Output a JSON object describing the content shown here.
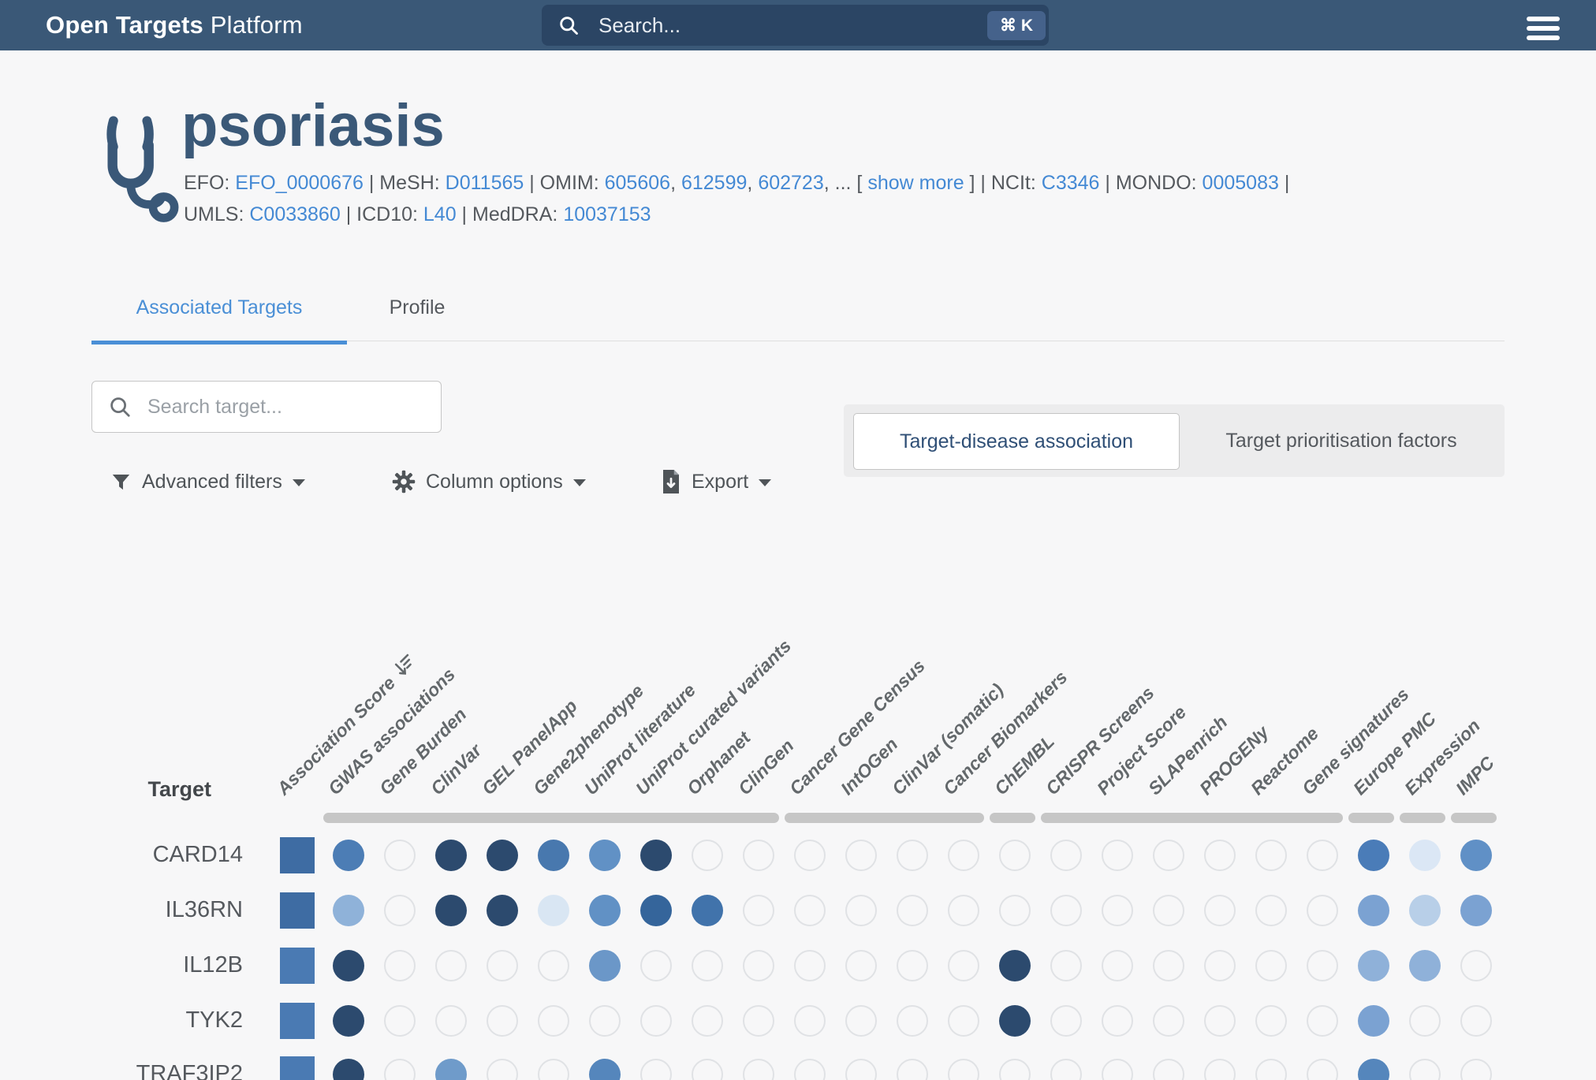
{
  "navbar": {
    "brand_bold": "Open Targets",
    "brand_regular": " Platform",
    "search_placeholder": "Search...",
    "shortcut": "⌘ K"
  },
  "disease": {
    "name": "psoriasis",
    "xrefs_line1": [
      {
        "t": "EFO: "
      },
      {
        "t": "EFO_0000676",
        "link": true
      },
      {
        "t": " | MeSH: "
      },
      {
        "t": "D011565",
        "link": true
      },
      {
        "t": " | OMIM: "
      },
      {
        "t": "605606",
        "link": true
      },
      {
        "t": ", "
      },
      {
        "t": "612599",
        "link": true
      },
      {
        "t": ", "
      },
      {
        "t": "602723",
        "link": true
      },
      {
        "t": ", ... [ "
      },
      {
        "t": "show more",
        "link": true
      },
      {
        "t": " ] | NCIt: "
      },
      {
        "t": "C3346",
        "link": true
      },
      {
        "t": " | MONDO: "
      },
      {
        "t": "0005083",
        "link": true
      },
      {
        "t": " |"
      }
    ],
    "xrefs_line2": [
      {
        "t": "UMLS: "
      },
      {
        "t": "C0033860",
        "link": true
      },
      {
        "t": " | ICD10: "
      },
      {
        "t": "L40",
        "link": true
      },
      {
        "t": " | MedDRA: "
      },
      {
        "t": "10037153",
        "link": true
      }
    ]
  },
  "tabs": [
    {
      "label": "Associated Targets",
      "active": true
    },
    {
      "label": "Profile",
      "active": false
    }
  ],
  "controls": {
    "search_placeholder": "Search target...",
    "advanced_filters": "Advanced filters",
    "column_options": "Column options",
    "export": "Export"
  },
  "view_toggle": {
    "options": [
      {
        "label": "Target-disease association",
        "active": true
      },
      {
        "label": "Target prioritisation factors",
        "active": false
      }
    ]
  },
  "matrix": {
    "row_header": "Target",
    "columns": [
      {
        "label": "Association Score",
        "sort": true,
        "type": "score"
      },
      {
        "label": "GWAS associations"
      },
      {
        "label": "Gene Burden"
      },
      {
        "label": "ClinVar"
      },
      {
        "label": "GEL PanelApp"
      },
      {
        "label": "Gene2phenotype"
      },
      {
        "label": "UniProt literature"
      },
      {
        "label": "UniProt curated variants"
      },
      {
        "label": "Orphanet"
      },
      {
        "label": "ClinGen"
      },
      {
        "label": "Cancer Gene Census"
      },
      {
        "label": "IntOGen"
      },
      {
        "label": "ClinVar (somatic)"
      },
      {
        "label": "Cancer Biomarkers"
      },
      {
        "label": "ChEMBL"
      },
      {
        "label": "CRISPR Screens"
      },
      {
        "label": "Project Score"
      },
      {
        "label": "SLAPenrich"
      },
      {
        "label": "PROGENy"
      },
      {
        "label": "Reactome"
      },
      {
        "label": "Gene signatures"
      },
      {
        "label": "Europe PMC"
      },
      {
        "label": "Expression"
      },
      {
        "label": "IMPC"
      }
    ],
    "groups": [
      [
        1,
        9
      ],
      [
        10,
        13
      ],
      [
        14,
        14
      ],
      [
        15,
        20
      ],
      [
        21,
        21
      ],
      [
        22,
        22
      ],
      [
        23,
        23
      ]
    ],
    "rows": [
      {
        "target": "CARD14",
        "score": "#3E6CA3",
        "cells": [
          "#4C7DB5",
          null,
          "#2C4A6E",
          "#2C4A6E",
          "#4878AE",
          "#6191C5",
          "#2C4A6E",
          null,
          null,
          null,
          null,
          null,
          null,
          null,
          null,
          null,
          null,
          null,
          null,
          null,
          "#4A7CB8",
          "#DBE7F5",
          "#6090C6"
        ]
      },
      {
        "target": "IL36RN",
        "score": "#3E6CA3",
        "cells": [
          "#8FB2D9",
          null,
          "#2C4A6E",
          "#2C4A6E",
          "#D9E6F3",
          "#6191C5",
          "#35659B",
          "#4173AB",
          null,
          null,
          null,
          null,
          null,
          null,
          null,
          null,
          null,
          null,
          null,
          null,
          "#7BA2D2",
          "#B8CFE8",
          "#7BA2D2"
        ]
      },
      {
        "target": "IL12B",
        "score": "#4A7AB3",
        "cells": [
          "#2C4A6E",
          null,
          null,
          null,
          null,
          "#6B97C8",
          null,
          null,
          null,
          null,
          null,
          null,
          null,
          "#2C4A6E",
          null,
          null,
          null,
          null,
          null,
          null,
          "#8FB1D9",
          "#8FB1D9",
          null
        ]
      },
      {
        "target": "TYK2",
        "score": "#4A7AB3",
        "cells": [
          "#2C4A6E",
          null,
          null,
          null,
          null,
          null,
          null,
          null,
          null,
          null,
          null,
          null,
          null,
          "#2C4A6E",
          null,
          null,
          null,
          null,
          null,
          null,
          "#7BA2D2",
          null,
          null
        ]
      },
      {
        "target": "TRAF3IP2",
        "score": "#4A7AB3",
        "cells": [
          "#2C4A6E",
          null,
          "#6F9BCA",
          null,
          null,
          "#5586BC",
          null,
          null,
          null,
          null,
          null,
          null,
          null,
          null,
          null,
          null,
          null,
          null,
          null,
          null,
          "#5586BC",
          null,
          null
        ]
      }
    ]
  },
  "colors": {
    "navbar_bg": "#3A5877",
    "navbar_search_bg": "#2B4564",
    "shortcut_badge_bg": "#45628B",
    "link_blue": "#4489D4",
    "active_tab_blue": "#4A8FD6",
    "title_blue": "#3B5978",
    "bubble_dark": "#2C4A6E",
    "bubble_empty_border": "#E0E2E5",
    "group_bar_gray": "#C6C6C6",
    "page_bg": "#F7F7F8"
  }
}
